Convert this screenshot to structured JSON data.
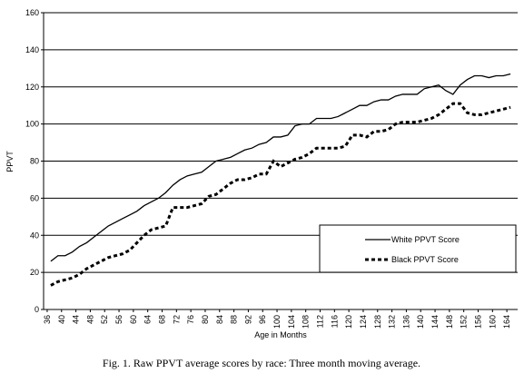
{
  "chart_data": {
    "type": "line",
    "caption": "Fig. 1. Raw PPVT average scores by race: Three month moving average.",
    "xlabel": "Age in Months",
    "ylabel": "PPVT",
    "x": [
      37,
      39,
      41,
      43,
      45,
      47,
      49,
      51,
      53,
      55,
      57,
      59,
      61,
      63,
      65,
      67,
      69,
      71,
      73,
      75,
      77,
      79,
      81,
      83,
      85,
      87,
      89,
      91,
      93,
      95,
      97,
      99,
      101,
      103,
      105,
      107,
      109,
      111,
      113,
      115,
      117,
      119,
      121,
      123,
      125,
      127,
      129,
      131,
      133,
      135,
      137,
      139,
      141,
      143,
      145,
      147,
      149,
      151,
      153,
      155,
      157,
      159,
      161,
      163,
      165
    ],
    "series": [
      {
        "name": "White PPVT Score",
        "color": "#000000",
        "style": "solid",
        "values": [
          26,
          29,
          29,
          31,
          34,
          36,
          39,
          42,
          45,
          47,
          49,
          51,
          53,
          56,
          58,
          60,
          63,
          67,
          70,
          72,
          73,
          74,
          77,
          80,
          81,
          82,
          84,
          86,
          87,
          89,
          90,
          93,
          93,
          94,
          99,
          100,
          100,
          103,
          103,
          103,
          104,
          106,
          108,
          110,
          110,
          112,
          113,
          113,
          115,
          116,
          116,
          116,
          119,
          120,
          121,
          118,
          116,
          121,
          124,
          126,
          126,
          125,
          126,
          126,
          127
        ]
      },
      {
        "name": "Black PPVT Score",
        "color": "#000000",
        "style": "dotted",
        "values": [
          13,
          15,
          16,
          17,
          19,
          22,
          24,
          26,
          28,
          29,
          30,
          32,
          36,
          40,
          43,
          44,
          45,
          55,
          55,
          55,
          56,
          57,
          61,
          62,
          65,
          68,
          70,
          70,
          71,
          73,
          73,
          80,
          77,
          79,
          81,
          82,
          84,
          87,
          87,
          87,
          87,
          88,
          94,
          94,
          93,
          96,
          96,
          97,
          100,
          101,
          101,
          101,
          102,
          103,
          105,
          108,
          111,
          111,
          106,
          105,
          105,
          106,
          107,
          108,
          109
        ]
      }
    ],
    "xlim": [
      35,
      167
    ],
    "xticks": [
      36,
      40,
      44,
      48,
      52,
      56,
      60,
      64,
      68,
      72,
      76,
      80,
      84,
      88,
      92,
      96,
      100,
      104,
      108,
      112,
      116,
      120,
      124,
      128,
      132,
      136,
      140,
      144,
      148,
      152,
      156,
      160,
      164
    ],
    "ylim": [
      0,
      160
    ],
    "yticks": [
      0,
      20,
      40,
      60,
      80,
      100,
      120,
      140,
      160
    ],
    "grid": true,
    "legend": "lower right"
  }
}
